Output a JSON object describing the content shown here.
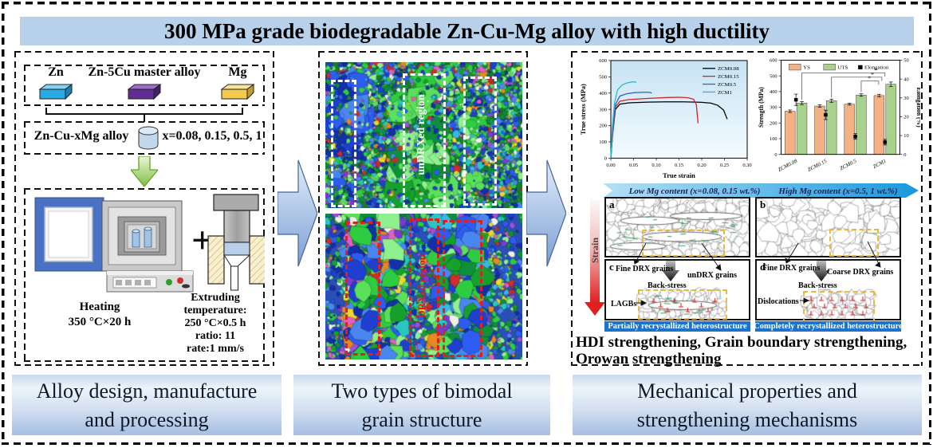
{
  "title": "300 MPa grade biodegradable Zn-Cu-Mg alloy with high ductility",
  "colors": {
    "banner_blue": "#b7d1ea",
    "flow_arrow_light": "#e3edf9",
    "flow_arrow_dark": "#7aa0d4",
    "green_arrow_light": "#eaf6da",
    "green_arrow_dark": "#7fbf3f",
    "strain_red": "#e02020",
    "mg_banner_light": "#b5e0f5",
    "mg_banner_dark": "#1898dc",
    "hetero_bar_blue": "#1d72cc",
    "yellow_dash": "#e8b93c",
    "schem_green": "#2f9e5a",
    "dislocation_red": "#d02020",
    "ys_bar": "#f4b183",
    "uts_bar": "#a9d18e",
    "ebsd_palette": [
      "#16a02c",
      "#2ecc40",
      "#5ae05a",
      "#0f8f3a",
      "#8ef08e",
      "#1f3fd0",
      "#2d5cf0",
      "#1430a8",
      "#4a86f0",
      "#28c8c0",
      "#38b8e8",
      "#7a3ad0",
      "#a050d8",
      "#e060c0",
      "#d42a2a",
      "#e88820",
      "#ecd832",
      "#f0f0e8"
    ]
  },
  "panels": {
    "design": {
      "caption_line1": "Alloy design, manufacture",
      "caption_line2": "and processing",
      "materials": {
        "zn": "Zn",
        "master": "Zn-5Cu master alloy",
        "mg": "Mg"
      },
      "alloy_label": "Zn-Cu-xMg alloy",
      "x_values": "x=0.08, 0.15, 0.5, 1",
      "plus_sign": "+",
      "heating_line1": "Heating",
      "heating_line2": "350 °C×20 h",
      "extruding_line1": "Extruding",
      "extruding_line2": "temperature:",
      "extruding_line3": "250 °C×0.5 h",
      "extruding_line4": "ratio: 11",
      "extruding_line5": "rate:1 mm/s"
    },
    "grains": {
      "caption_line1": "Two types of  bimodal",
      "caption_line2": "grain structure",
      "top_label": "unDRXed region",
      "bottom_label": "DRXed region"
    },
    "mech": {
      "caption_line1": "Mechanical properties and",
      "caption_line2": "strengthening mechanisms",
      "banner_low": "Low Mg content (x=0.08, 0.15 wt.%)",
      "banner_high": "High Mg content (x=0.5, 1 wt.%)",
      "strain_label": "Strain",
      "schematic": {
        "a": "a",
        "b": "b",
        "c": "c",
        "d": "d",
        "fine_drx": "Fine DRX grains",
        "undrx": "unDRX grains",
        "coarse_drx": "Coarse DRX grains",
        "back_stress": "Back-stress",
        "lagbs": "LAGBs",
        "dislocations": "Dislocations",
        "partial_bar": "Partially recrystallized heterostructure",
        "complete_bar": "Completely  recrystallized heterostructure"
      },
      "bottom_text_line1": "HDI strengthening, Grain boundary strengthening,",
      "bottom_text_line2": "Orowan strengthening"
    }
  },
  "chart_data": [
    {
      "type": "line",
      "xlabel": "True strain",
      "ylabel": "True stress (MPa)",
      "xlim": [
        0,
        0.3
      ],
      "ylim": [
        0,
        600
      ],
      "xticks": [
        0.0,
        0.05,
        0.1,
        0.15,
        0.2,
        0.25,
        0.3
      ],
      "yticks": [
        0,
        100,
        200,
        300,
        400,
        500,
        600
      ],
      "legend_position": "top-right",
      "grid": false,
      "plot_bg_top": "#c7e3f4",
      "plot_bg_bottom": "#f4fbff",
      "series": [
        {
          "name": "ZCM0.08",
          "color": "#000000",
          "x": [
            0,
            0.004,
            0.01,
            0.02,
            0.04,
            0.08,
            0.12,
            0.16,
            0.2,
            0.22,
            0.235,
            0.248,
            0.256
          ],
          "y": [
            0,
            150,
            300,
            332,
            340,
            344,
            346,
            346,
            343,
            338,
            325,
            295,
            240
          ]
        },
        {
          "name": "ZCM0.15",
          "color": "#d02428",
          "x": [
            0,
            0.004,
            0.01,
            0.02,
            0.04,
            0.08,
            0.12,
            0.15,
            0.17,
            0.182,
            0.188,
            0.192
          ],
          "y": [
            0,
            160,
            315,
            350,
            360,
            367,
            372,
            374,
            371,
            362,
            330,
            215
          ]
        },
        {
          "name": "ZCM0.5",
          "color": "#3a5fc8",
          "x": [
            0,
            0.004,
            0.01,
            0.02,
            0.035,
            0.05,
            0.07,
            0.085,
            0.09
          ],
          "y": [
            0,
            170,
            330,
            382,
            396,
            402,
            405,
            405,
            400
          ]
        },
        {
          "name": "ZCM1",
          "color": "#28b8c8",
          "x": [
            0,
            0.003,
            0.008,
            0.015,
            0.025,
            0.035,
            0.045,
            0.052,
            0.056
          ],
          "y": [
            0,
            180,
            340,
            420,
            450,
            462,
            468,
            469,
            466
          ]
        }
      ]
    },
    {
      "type": "bar",
      "categories": [
        "ZCM0.08",
        "ZCM0.15",
        "ZCM0.5",
        "ZCM1"
      ],
      "ylabel_left": "Strength (MPa)",
      "ylabel_right": "Elongation (%)",
      "ylim_left": [
        0,
        600
      ],
      "yticks_left": [
        0,
        100,
        200,
        300,
        400,
        500,
        600
      ],
      "ylim_right": [
        0,
        50
      ],
      "yticks_right": [
        0,
        10,
        20,
        30,
        40,
        50
      ],
      "series": [
        {
          "name": "YS",
          "color": "#f4b183",
          "values": [
            275,
            308,
            320,
            375
          ],
          "errors": [
            8,
            8,
            6,
            8
          ]
        },
        {
          "name": "UTS",
          "color": "#a9d18e",
          "values": [
            327,
            342,
            378,
            447
          ],
          "errors": [
            10,
            10,
            8,
            14
          ]
        }
      ],
      "elongation": {
        "name": "Elongation",
        "color": "#000000",
        "values": [
          29,
          21,
          9.5,
          6.5
        ],
        "errors": [
          3,
          2.5,
          1.5,
          1.5
        ]
      },
      "significance": [
        {
          "from": 0,
          "to": 3,
          "y": 520,
          "marker": "*"
        },
        {
          "from": 1,
          "to": 3,
          "y": 492,
          "marker": "*"
        },
        {
          "from": 2,
          "to": 3,
          "y": 468,
          "marker": "*"
        }
      ]
    }
  ]
}
